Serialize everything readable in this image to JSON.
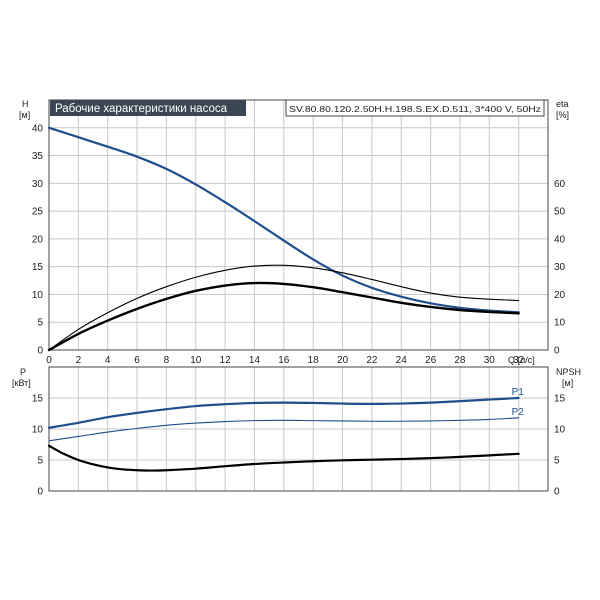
{
  "chart_data": [
    {
      "type": "line",
      "title": "Рабочие характеристики насоса",
      "model_label": "SV.80.80.120.2.50H.H.198.S.EX.D.511, 3*400 V, 50Hz",
      "xlabel": "Q [л/с]",
      "ylabel": "H",
      "ylabel_unit": "[м]",
      "y2label": "eta",
      "y2label_unit": "[%]",
      "xlim": [
        0,
        34
      ],
      "ylim": [
        0,
        45
      ],
      "y2lim": [
        0,
        90
      ],
      "xticks": [
        "0",
        "2",
        "4",
        "6",
        "8",
        "10",
        "12",
        "14",
        "16",
        "18",
        "20",
        "22",
        "24",
        "26",
        "28",
        "30",
        "32"
      ],
      "yticks": [
        "0",
        "5",
        "10",
        "15",
        "20",
        "25",
        "30",
        "35",
        "40"
      ],
      "y2ticks": [
        "0",
        "10",
        "20",
        "30",
        "40",
        "50",
        "60"
      ],
      "grid": true,
      "series": [
        {
          "axis": "left",
          "color": "#1f4e8c",
          "width": 2.2,
          "x": [
            0,
            2,
            4,
            6,
            8,
            10,
            12,
            14,
            16,
            18,
            20,
            22,
            24,
            26,
            28,
            30,
            32
          ],
          "y": [
            40,
            38.3,
            36.6,
            34.8,
            32.6,
            29.8,
            26.6,
            23.2,
            19.7,
            16.3,
            13.4,
            11.2,
            9.6,
            8.4,
            7.6,
            7.1,
            6.8
          ]
        },
        {
          "axis": "right",
          "color": "#000000",
          "width": 1.1,
          "x": [
            0,
            2,
            4,
            6,
            8,
            10,
            12,
            14,
            16,
            18,
            20,
            22,
            24,
            26,
            28,
            30,
            32
          ],
          "y": [
            0,
            7.4,
            13.4,
            18.6,
            22.8,
            26.2,
            28.7,
            30.2,
            30.5,
            29.6,
            27.8,
            25.4,
            22.8,
            20.5,
            19.0,
            18.3,
            17.8
          ]
        },
        {
          "axis": "right",
          "color": "#000000",
          "width": 2.4,
          "x": [
            0,
            2,
            4,
            6,
            8,
            10,
            12,
            14,
            16,
            18,
            20,
            22,
            24,
            26,
            28,
            30,
            32
          ],
          "y": [
            0,
            5.8,
            10.6,
            14.8,
            18.4,
            21.3,
            23.2,
            24.1,
            23.8,
            22.6,
            20.8,
            18.9,
            17.0,
            15.5,
            14.4,
            13.7,
            13.2
          ]
        }
      ]
    },
    {
      "type": "line",
      "xlabel": "",
      "ylabel": "P",
      "ylabel_unit": "[кВт]",
      "y2label": "NPSH",
      "y2label_unit": "[м]",
      "xlim": [
        0,
        34
      ],
      "ylim": [
        0,
        20
      ],
      "y2lim": [
        0,
        20
      ],
      "yticks": [
        "0",
        "5",
        "10",
        "15"
      ],
      "y2ticks": [
        "0",
        "5",
        "10",
        "15"
      ],
      "grid": true,
      "series": [
        {
          "name": "P1",
          "axis": "left",
          "color": "#1f4e8c",
          "width": 2.2,
          "x": [
            0,
            2,
            4,
            6,
            8,
            10,
            12,
            14,
            16,
            18,
            20,
            22,
            24,
            26,
            28,
            30,
            32
          ],
          "y": [
            10.2,
            11.0,
            11.9,
            12.6,
            13.2,
            13.7,
            14.0,
            14.2,
            14.25,
            14.2,
            14.1,
            14.05,
            14.1,
            14.25,
            14.5,
            14.75,
            15.0
          ]
        },
        {
          "name": "P2",
          "axis": "left",
          "color": "#1f4e8c",
          "width": 1.1,
          "x": [
            0,
            2,
            4,
            6,
            8,
            10,
            12,
            14,
            16,
            18,
            20,
            22,
            24,
            26,
            28,
            30,
            32
          ],
          "y": [
            8.1,
            8.8,
            9.5,
            10.1,
            10.6,
            10.95,
            11.2,
            11.35,
            11.4,
            11.35,
            11.3,
            11.25,
            11.25,
            11.3,
            11.4,
            11.55,
            11.8
          ]
        },
        {
          "axis": "right",
          "color": "#000000",
          "width": 2.2,
          "x": [
            0,
            1,
            2,
            3,
            4,
            5,
            6,
            7,
            8,
            10,
            12,
            14,
            16,
            18,
            20,
            22,
            24,
            26,
            28,
            30,
            32
          ],
          "y": [
            7.3,
            6.0,
            5.0,
            4.3,
            3.8,
            3.5,
            3.35,
            3.3,
            3.35,
            3.6,
            4.0,
            4.35,
            4.6,
            4.8,
            4.95,
            5.05,
            5.15,
            5.3,
            5.5,
            5.75,
            6.0
          ]
        }
      ]
    }
  ]
}
